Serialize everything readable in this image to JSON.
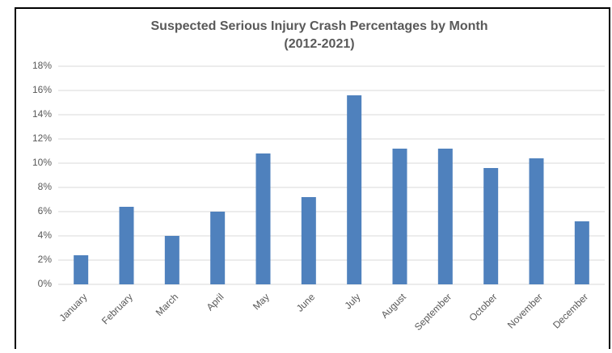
{
  "chart_data": {
    "type": "bar",
    "title": "Suspected Serious Injury Crash Percentages by Month",
    "subtitle": "(2012-2021)",
    "categories": [
      "January",
      "February",
      "March",
      "April",
      "May",
      "June",
      "July",
      "August",
      "September",
      "October",
      "November",
      "December"
    ],
    "values": [
      2.4,
      6.4,
      4.0,
      6.0,
      10.8,
      7.2,
      15.6,
      11.2,
      11.2,
      9.6,
      10.4,
      5.2
    ],
    "color": "#4f81bd",
    "ylim": [
      0,
      18
    ],
    "yticks": [
      {
        "value": 0,
        "label": "0%"
      },
      {
        "value": 2,
        "label": "2%"
      },
      {
        "value": 4,
        "label": "4%"
      },
      {
        "value": 6,
        "label": "6%"
      },
      {
        "value": 8,
        "label": "8%"
      },
      {
        "value": 10,
        "label": "10%"
      },
      {
        "value": 12,
        "label": "12%"
      },
      {
        "value": 14,
        "label": "14%"
      },
      {
        "value": 16,
        "label": "16%"
      },
      {
        "value": 18,
        "label": "18%"
      }
    ],
    "grid": true
  }
}
